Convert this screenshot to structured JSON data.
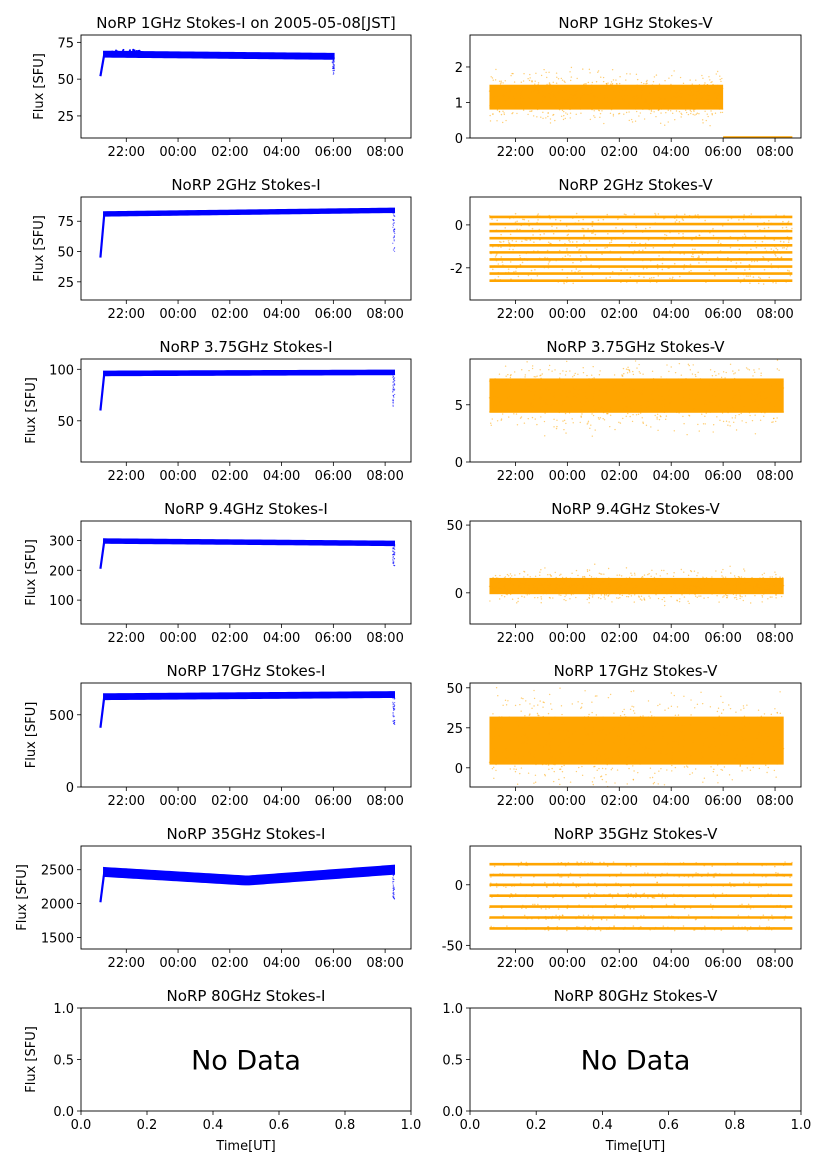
{
  "figure": {
    "title_date": "NoRP 1GHz Stokes-I on 2005-05-08[JST]",
    "ylabel": "Flux [SFU]",
    "xlabel": "Time[UT]",
    "no_data_text": "No Data",
    "time_ticks": [
      "22:00",
      "00:00",
      "02:00",
      "04:00",
      "06:00",
      "08:00"
    ],
    "colors": {
      "stokes_i": "#0000ff",
      "stokes_v": "#ffa500"
    }
  },
  "chart_data": [
    {
      "type": "scatter",
      "title": "NoRP 1GHz Stokes-I on 2005-05-08[JST]",
      "ylabel": "Flux [SFU]",
      "ylim": [
        10,
        80
      ],
      "yticks": [
        25,
        50,
        75
      ],
      "color": "#0000ff",
      "series": [
        {
          "name": "1GHz Stokes-I",
          "start": "21:00",
          "end": "06:00",
          "rise_from": 52,
          "level_start": 67,
          "level_end": 65.5,
          "spread": 1.5,
          "peak_at_start": 70
        }
      ]
    },
    {
      "type": "scatter",
      "title": "NoRP 1GHz Stokes-V",
      "ylim": [
        0,
        2.9
      ],
      "yticks": [
        0,
        1,
        2
      ],
      "color": "#ffa500",
      "series": [
        {
          "name": "1GHz Stokes-V",
          "start": "21:00",
          "end": "06:00",
          "center": 1.15,
          "spread": 0.35,
          "tail_start": "06:00",
          "tail_end": "08:40",
          "tail_value": 0.02
        }
      ]
    },
    {
      "type": "scatter",
      "title": "NoRP 2GHz Stokes-I",
      "ylabel": "Flux [SFU]",
      "ylim": [
        10,
        95
      ],
      "yticks": [
        25,
        50,
        75
      ],
      "color": "#0000ff",
      "series": [
        {
          "name": "2GHz Stokes-I",
          "start": "21:00",
          "end": "08:20",
          "rise_from": 45,
          "level_start": 81,
          "level_end": 84,
          "spread": 1.2
        }
      ]
    },
    {
      "type": "scatter",
      "title": "NoRP 2GHz Stokes-V",
      "ylim": [
        -3.5,
        1.3
      ],
      "yticks": [
        -2,
        0
      ],
      "color": "#ffa500",
      "series": [
        {
          "name": "2GHz Stokes-V",
          "start": "21:00",
          "end": "08:40",
          "bands_from": -2.6,
          "bands_to": 0.4,
          "band_step": 0.33
        }
      ]
    },
    {
      "type": "scatter",
      "title": "NoRP 3.75GHz Stokes-I",
      "ylabel": "Flux [SFU]",
      "ylim": [
        10,
        110
      ],
      "yticks": [
        50,
        100
      ],
      "color": "#0000ff",
      "series": [
        {
          "name": "3.75GHz Stokes-I",
          "start": "21:00",
          "end": "08:20",
          "rise_from": 60,
          "level_start": 96,
          "level_end": 97,
          "spread": 1.5
        }
      ]
    },
    {
      "type": "scatter",
      "title": "NoRP 3.75GHz Stokes-V",
      "ylim": [
        0,
        9
      ],
      "yticks": [
        0,
        5
      ],
      "color": "#ffa500",
      "series": [
        {
          "name": "3.75GHz Stokes-V",
          "start": "21:00",
          "end": "08:20",
          "center": 5.8,
          "spread": 1.5
        }
      ]
    },
    {
      "type": "scatter",
      "title": "NoRP 9.4GHz Stokes-I",
      "ylabel": "Flux [SFU]",
      "ylim": [
        20,
        365
      ],
      "yticks": [
        100,
        200,
        300
      ],
      "color": "#0000ff",
      "series": [
        {
          "name": "9.4GHz Stokes-I",
          "start": "21:00",
          "end": "08:20",
          "rise_from": 205,
          "level_start": 298,
          "level_end": 290,
          "spread": 5
        }
      ]
    },
    {
      "type": "scatter",
      "title": "NoRP 9.4GHz Stokes-V",
      "ylim": [
        -23,
        53
      ],
      "yticks": [
        0,
        50
      ],
      "color": "#ffa500",
      "series": [
        {
          "name": "9.4GHz Stokes-V",
          "start": "21:00",
          "end": "08:20",
          "center": 5,
          "spread": 6
        }
      ]
    },
    {
      "type": "scatter",
      "title": "NoRP 17GHz Stokes-I",
      "ylabel": "Flux [SFU]",
      "ylim": [
        0,
        720
      ],
      "yticks": [
        0,
        500
      ],
      "color": "#0000ff",
      "series": [
        {
          "name": "17GHz Stokes-I",
          "start": "21:00",
          "end": "08:20",
          "rise_from": 410,
          "level_start": 625,
          "level_end": 640,
          "spread": 15
        }
      ]
    },
    {
      "type": "scatter",
      "title": "NoRP 17GHz Stokes-V",
      "ylim": [
        -12,
        53
      ],
      "yticks": [
        0,
        25,
        50
      ],
      "color": "#ffa500",
      "series": [
        {
          "name": "17GHz Stokes-V",
          "start": "21:00",
          "end": "08:20",
          "center": 17,
          "spread": 15
        }
      ]
    },
    {
      "type": "scatter",
      "title": "NoRP 35GHz Stokes-I",
      "ylabel": "Flux [SFU]",
      "ylim": [
        1330,
        2850
      ],
      "yticks": [
        1500,
        2000,
        2500
      ],
      "color": "#0000ff",
      "series": [
        {
          "name": "35GHz Stokes-I",
          "start": "21:00",
          "end": "08:20",
          "rise_from": 2020,
          "level_start": 2470,
          "level_mid": 2340,
          "level_end": 2500,
          "spread": 55
        }
      ]
    },
    {
      "type": "scatter",
      "title": "NoRP 35GHz Stokes-V",
      "ylim": [
        -53,
        32
      ],
      "yticks": [
        -50,
        0
      ],
      "color": "#ffa500",
      "series": [
        {
          "name": "35GHz Stokes-V",
          "start": "21:00",
          "end": "08:40",
          "bands": [
            -36,
            -27,
            -18,
            -9,
            0,
            8,
            17
          ]
        }
      ]
    },
    {
      "type": "empty",
      "title": "NoRP 80GHz Stokes-I",
      "ylabel": "Flux [SFU]",
      "xlabel": "Time[UT]",
      "xlim": [
        0,
        1
      ],
      "ylim": [
        0,
        1
      ],
      "xticks": [
        "0.0",
        "0.2",
        "0.4",
        "0.6",
        "0.8",
        "1.0"
      ],
      "yticks": [
        "0.0",
        "0.5",
        "1.0"
      ],
      "annotation": "No Data"
    },
    {
      "type": "empty",
      "title": "NoRP 80GHz Stokes-V",
      "xlabel": "Time[UT]",
      "xlim": [
        0,
        1
      ],
      "ylim": [
        0,
        1
      ],
      "xticks": [
        "0.0",
        "0.2",
        "0.4",
        "0.6",
        "0.8",
        "1.0"
      ],
      "yticks": [
        "0.0",
        "0.5",
        "1.0"
      ],
      "annotation": "No Data"
    }
  ]
}
